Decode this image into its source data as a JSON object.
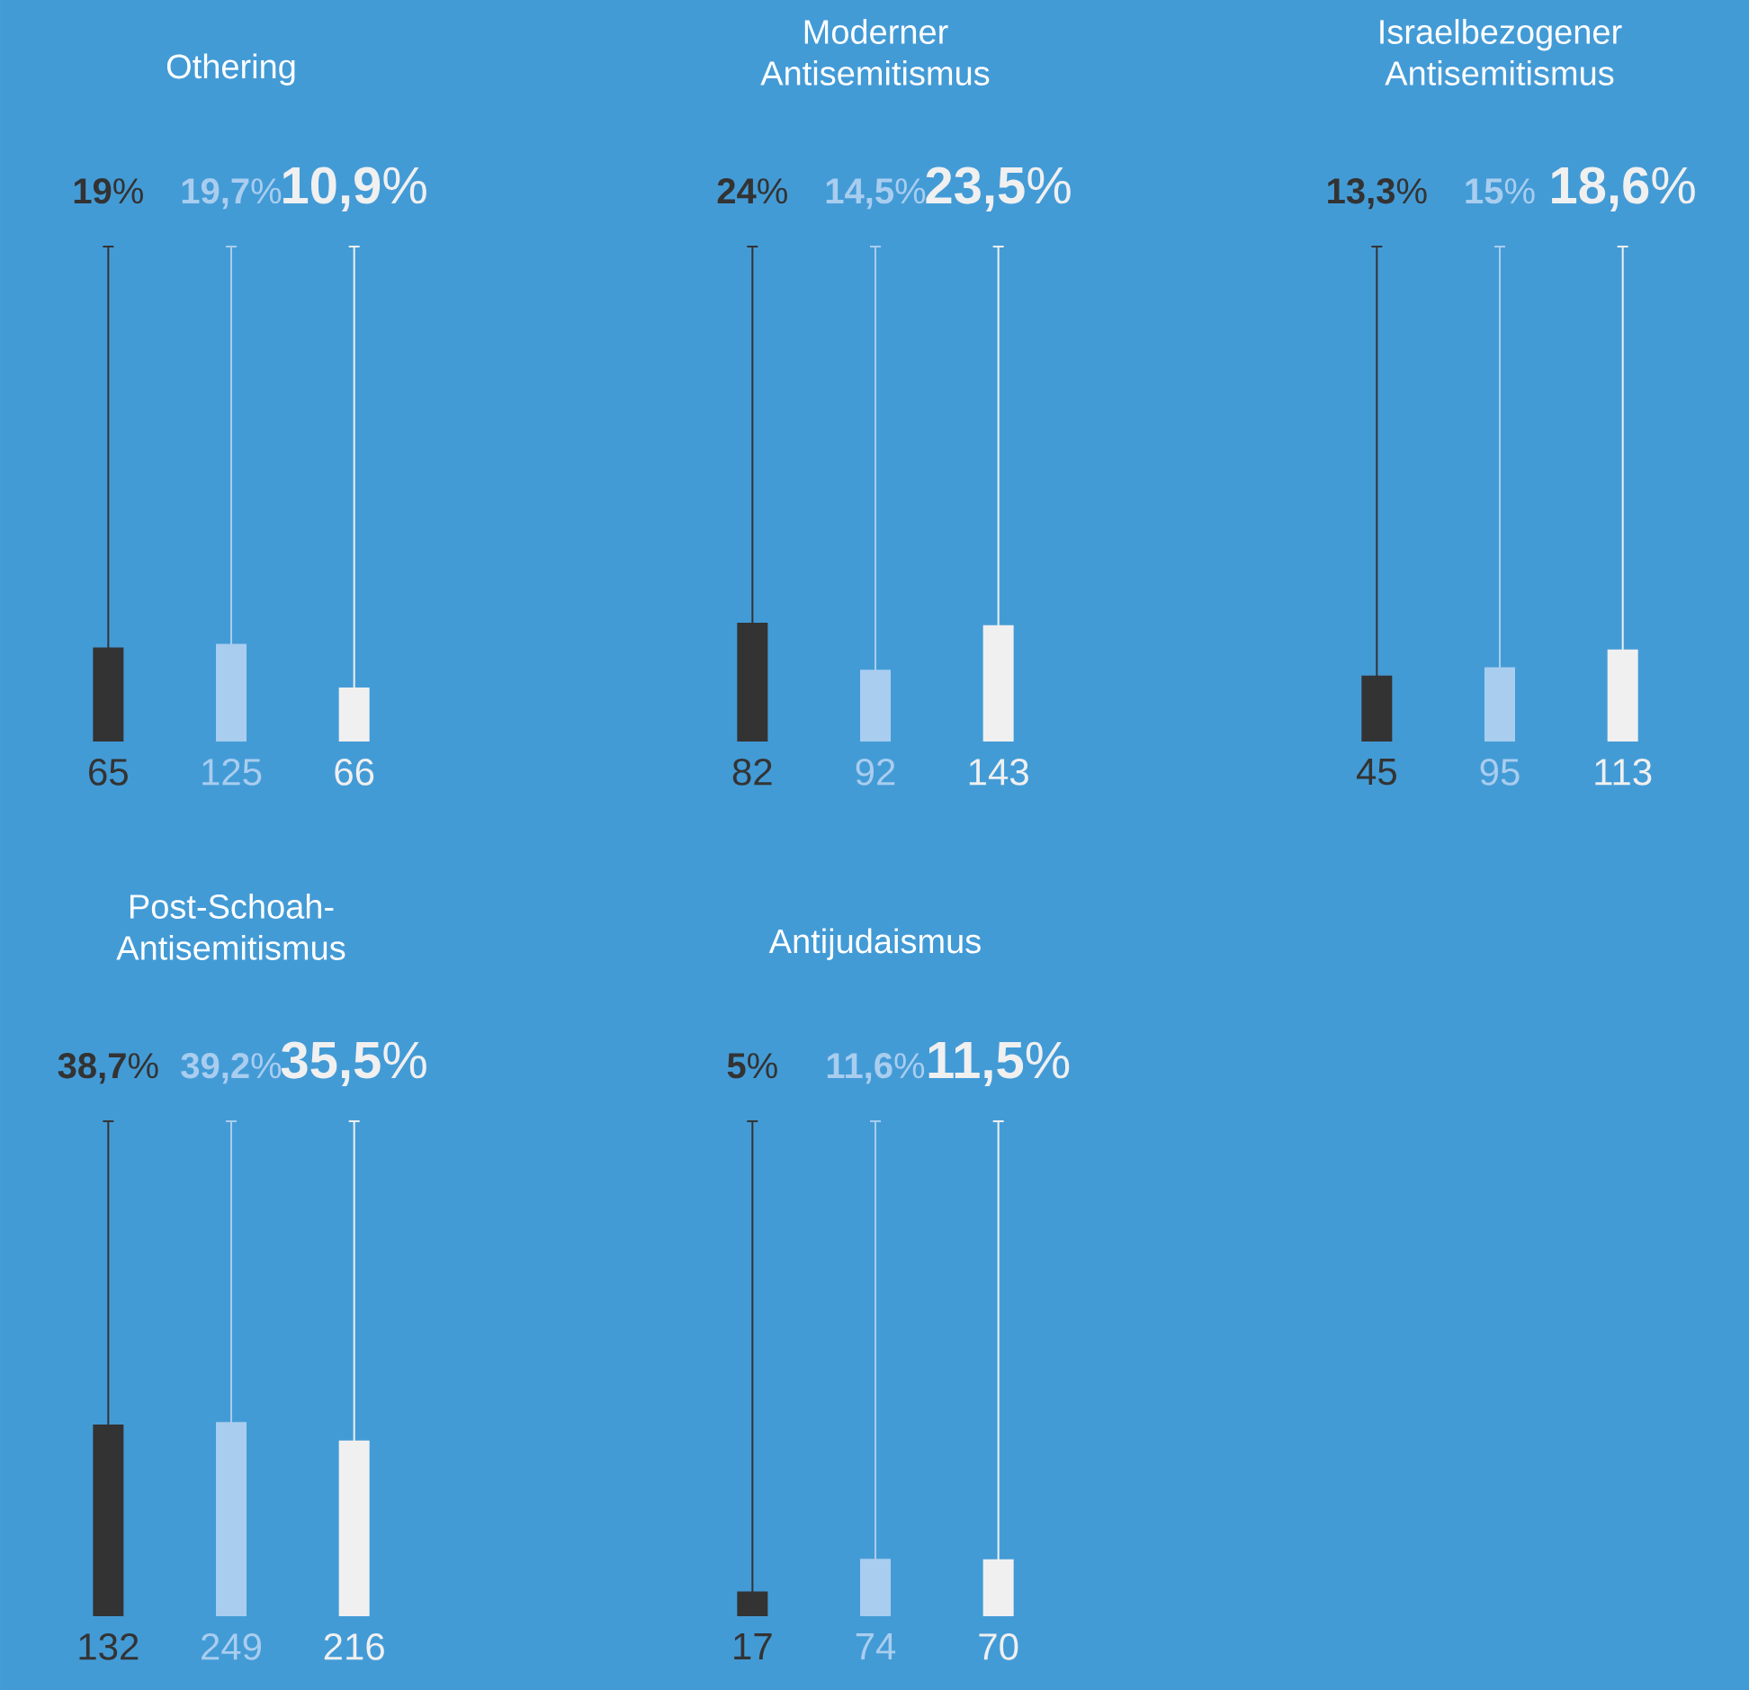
{
  "chart_data": [
    {
      "type": "bar",
      "title": "Othering",
      "categories": [
        "65",
        "125",
        "66"
      ],
      "values": [
        19,
        19.7,
        10.9
      ],
      "colors": [
        "#333333",
        "#a9cdef",
        "#f0f0f0"
      ],
      "value_labels": [
        "**19**%",
        "**19,7**%",
        "**10,9**%"
      ],
      "ylim": [
        0,
        100
      ]
    },
    {
      "type": "bar",
      "title": "Moderner Antisemitismus",
      "categories": [
        "82",
        "92",
        "143"
      ],
      "values": [
        24,
        14.5,
        23.5
      ],
      "colors": [
        "#333333",
        "#a9cdef",
        "#f0f0f0"
      ],
      "value_labels": [
        "**24**%",
        "**14,5**%",
        "**23,5**%"
      ],
      "ylim": [
        0,
        100
      ]
    },
    {
      "type": "bar",
      "title": "Israelbezogener Antisemitismus",
      "categories": [
        "45",
        "95",
        "113"
      ],
      "values": [
        13.3,
        15,
        18.6
      ],
      "colors": [
        "#333333",
        "#a9cdef",
        "#f0f0f0"
      ],
      "value_labels": [
        "**13,3**%",
        "**15**%",
        "**18,6**%"
      ],
      "ylim": [
        0,
        100
      ]
    },
    {
      "type": "bar",
      "title": "Post-Schoah-Antisemitismus",
      "categories": [
        "132",
        "249",
        "216"
      ],
      "values": [
        38.7,
        39.2,
        35.5
      ],
      "colors": [
        "#333333",
        "#a9cdef",
        "#f0f0f0"
      ],
      "value_labels": [
        "**38,7**%",
        "**39,2**%",
        "**35,5**%"
      ],
      "ylim": [
        0,
        100
      ]
    },
    {
      "type": "bar",
      "title": "Antijudaismus",
      "categories": [
        "17",
        "74",
        "70"
      ],
      "values": [
        5,
        11.6,
        11.5
      ],
      "colors": [
        "#333333",
        "#a9cdef",
        "#f0f0f0"
      ],
      "value_labels": [
        "**5**%",
        "**11,6**%",
        "**11,5**%"
      ],
      "ylim": [
        0,
        100
      ]
    }
  ]
}
